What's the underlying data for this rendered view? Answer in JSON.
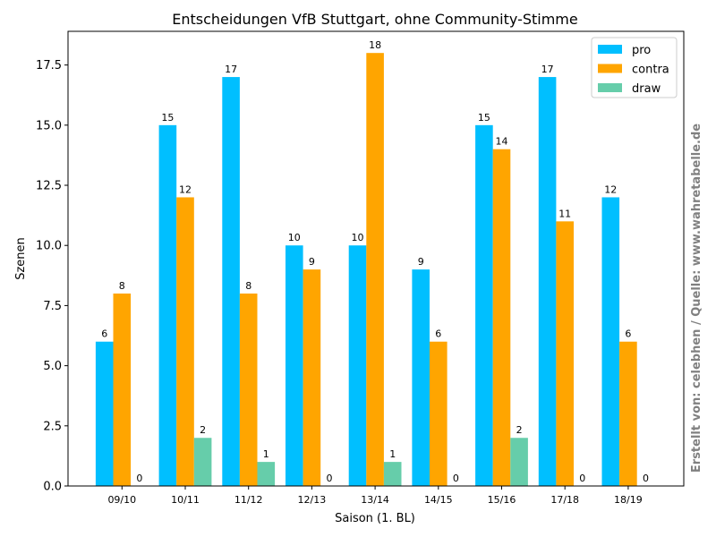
{
  "chart_data": {
    "type": "bar",
    "title": "Entscheidungen VfB Stuttgart, ohne Community-Stimme",
    "xlabel": "Saison (1. BL)",
    "ylabel": "Szenen",
    "categories": [
      "09/10",
      "10/11",
      "11/12",
      "12/13",
      "13/14",
      "14/15",
      "15/16",
      "17/18",
      "18/19"
    ],
    "series": [
      {
        "name": "pro",
        "color": "#00bfff",
        "values": [
          6,
          15,
          17,
          10,
          10,
          9,
          15,
          17,
          12
        ]
      },
      {
        "name": "contra",
        "color": "#ffa500",
        "values": [
          8,
          12,
          8,
          9,
          18,
          6,
          14,
          11,
          6
        ]
      },
      {
        "name": "draw",
        "color": "#66cdaa",
        "values": [
          0,
          2,
          1,
          0,
          1,
          0,
          2,
          0,
          0
        ]
      }
    ],
    "ylim": [
      0,
      18.9
    ],
    "yticks": [
      0.0,
      2.5,
      5.0,
      7.5,
      10.0,
      12.5,
      15.0,
      17.5
    ],
    "ytick_labels": [
      "0.0",
      "2.5",
      "5.0",
      "7.5",
      "10.0",
      "12.5",
      "15.0",
      "17.5"
    ],
    "grid": false,
    "legend_position": "top-right",
    "side_annotation": "Erstellt von: celebhen / Quelle: www.wahretabelle.de",
    "side_annotation_color": "#808080"
  }
}
